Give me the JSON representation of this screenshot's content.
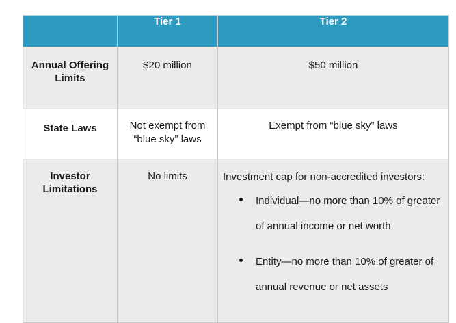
{
  "table": {
    "headers": [
      "",
      "Tier 1",
      "Tier 2"
    ],
    "rows": [
      {
        "label": "Annual Offering Limits",
        "tier1": "$20 million",
        "tier2": "$50 million"
      },
      {
        "label": "State Laws",
        "tier1": "Not exempt from “blue sky” laws",
        "tier2": "Exempt from “blue sky” laws"
      },
      {
        "label": "Investor Limitations",
        "tier1": "No limits",
        "tier2_intro": "Investment cap for non-accredited investors:",
        "tier2_items": [
          "Individual—no more than 10% of greater of annual income or net worth",
          "Entity—no more than 10% of greater of annual revenue or net assets"
        ]
      }
    ]
  }
}
